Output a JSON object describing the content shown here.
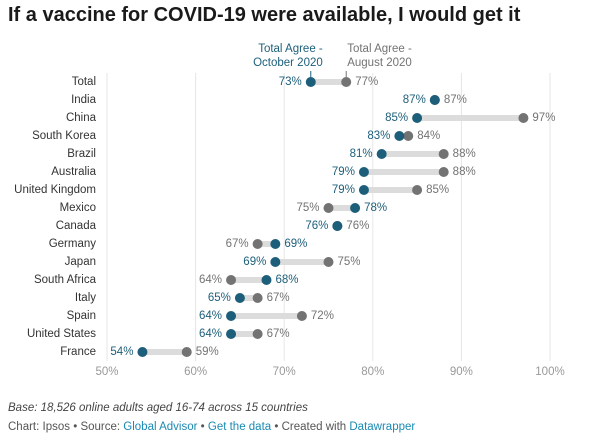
{
  "chart_data": {
    "type": "dumbbell",
    "title": "If a vaccine for COVID-19 were available, I would get it",
    "categories": [
      "Total",
      "India",
      "China",
      "South Korea",
      "Brazil",
      "Australia",
      "United Kingdom",
      "Mexico",
      "Canada",
      "Germany",
      "Japan",
      "South Africa",
      "Italy",
      "Spain",
      "United States",
      "France"
    ],
    "series": [
      {
        "name": "Total Agree - October 2020",
        "color": "#1d5f7a",
        "values": [
          73,
          87,
          85,
          83,
          81,
          79,
          79,
          78,
          76,
          69,
          69,
          68,
          65,
          64,
          64,
          54
        ],
        "value_labels": [
          "73%",
          "87%",
          "85%",
          "83%",
          "81%",
          "79%",
          "79%",
          "78%",
          "76%",
          "69%",
          "69%",
          "68%",
          "65%",
          "64%",
          "64%",
          "54%"
        ]
      },
      {
        "name": "Total Agree - August 2020",
        "color": "#737373",
        "values": [
          77,
          87,
          97,
          84,
          88,
          88,
          85,
          75,
          76,
          67,
          75,
          64,
          67,
          72,
          67,
          59
        ],
        "value_labels": [
          "77%",
          "87%",
          "97%",
          "84%",
          "88%",
          "88%",
          "85%",
          "75%",
          "76%",
          "67%",
          "75%",
          "64%",
          "67%",
          "72%",
          "67%",
          "59%"
        ]
      }
    ],
    "xlim": [
      50,
      100
    ],
    "xticks": [
      {
        "value": 50,
        "label": "50%"
      },
      {
        "value": 60,
        "label": "60%"
      },
      {
        "value": 70,
        "label": "70%"
      },
      {
        "value": 80,
        "label": "80%"
      },
      {
        "value": 90,
        "label": "90%"
      },
      {
        "value": 100,
        "label": "100%"
      }
    ],
    "grid": true,
    "note": "Base: 18,526 online adults aged 16-74 across 15 countries",
    "footer": {
      "chart": "Chart: Ipsos",
      "separator": "•",
      "source_label": "Source:",
      "source": "Global Advisor",
      "get_data": "Get the data",
      "created_with": "Created with",
      "tool": "Datawrapper"
    }
  }
}
